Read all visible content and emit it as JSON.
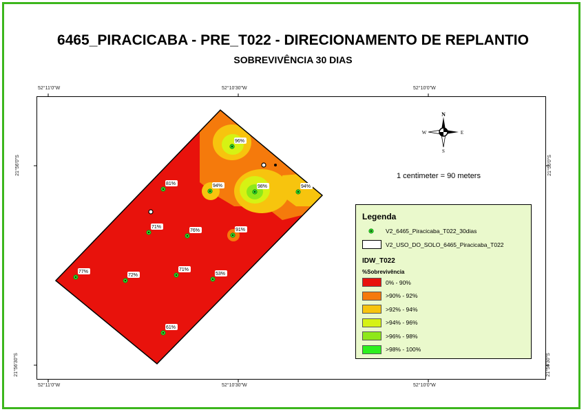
{
  "title": "6465_PIRACICABA - PRE_T022 - DIRECIONAMENTO DE REPLANTIO",
  "subtitle": "SOBREVIVÊNCIA 30 DIAS",
  "coords": {
    "top": [
      "52°11'0\"W",
      "52°10'30\"W",
      "52°10'0\"W"
    ],
    "bottom": [
      "52°11'0\"W",
      "52°10'30\"W",
      "52°10'0\"W"
    ],
    "left": [
      "21°56'0\"S",
      "21°56'30\"S"
    ],
    "right": [
      "21°56'0\"S",
      "21°56'30\"S"
    ]
  },
  "scale_text": "1 centimeter = 90 meters",
  "compass": {
    "n": "N",
    "s": "S",
    "e": "E",
    "w": "W"
  },
  "points": [
    {
      "label": "96%",
      "value": 96
    },
    {
      "label": "81%",
      "value": 81
    },
    {
      "label": "94%",
      "value": 94
    },
    {
      "label": "98%",
      "value": 98
    },
    {
      "label": "94%",
      "value": 94
    },
    {
      "label": "71%",
      "value": 71
    },
    {
      "label": "76%",
      "value": 76
    },
    {
      "label": "91%",
      "value": 91
    },
    {
      "label": "77%",
      "value": 77
    },
    {
      "label": "72%",
      "value": 72
    },
    {
      "label": "71%",
      "value": 71
    },
    {
      "label": "53%",
      "value": 53
    },
    {
      "label": "61%",
      "value": 61
    }
  ],
  "legend": {
    "title": "Legenda",
    "points_layer": "V2_6465_Piracicaba_T022_30dias",
    "polygon_layer": "V2_USO_DO_SOLO_6465_Piracicaba_T022",
    "idw_title": "IDW_T022",
    "field_title": "%Sobrevivência",
    "classes": [
      {
        "label": "0% - 90%",
        "color": "#e8120c"
      },
      {
        "label": ">90% - 92%",
        "color": "#f57a0c"
      },
      {
        "label": ">92% - 94%",
        "color": "#f7c40e"
      },
      {
        "label": ">94% - 96%",
        "color": "#d6f214"
      },
      {
        "label": ">96% - 98%",
        "color": "#8ee81a"
      },
      {
        "label": ">98% - 100%",
        "color": "#2cf01e"
      }
    ]
  },
  "colors": {
    "frame": "#3cb61c",
    "legend_bg": "#eaf9cc"
  }
}
